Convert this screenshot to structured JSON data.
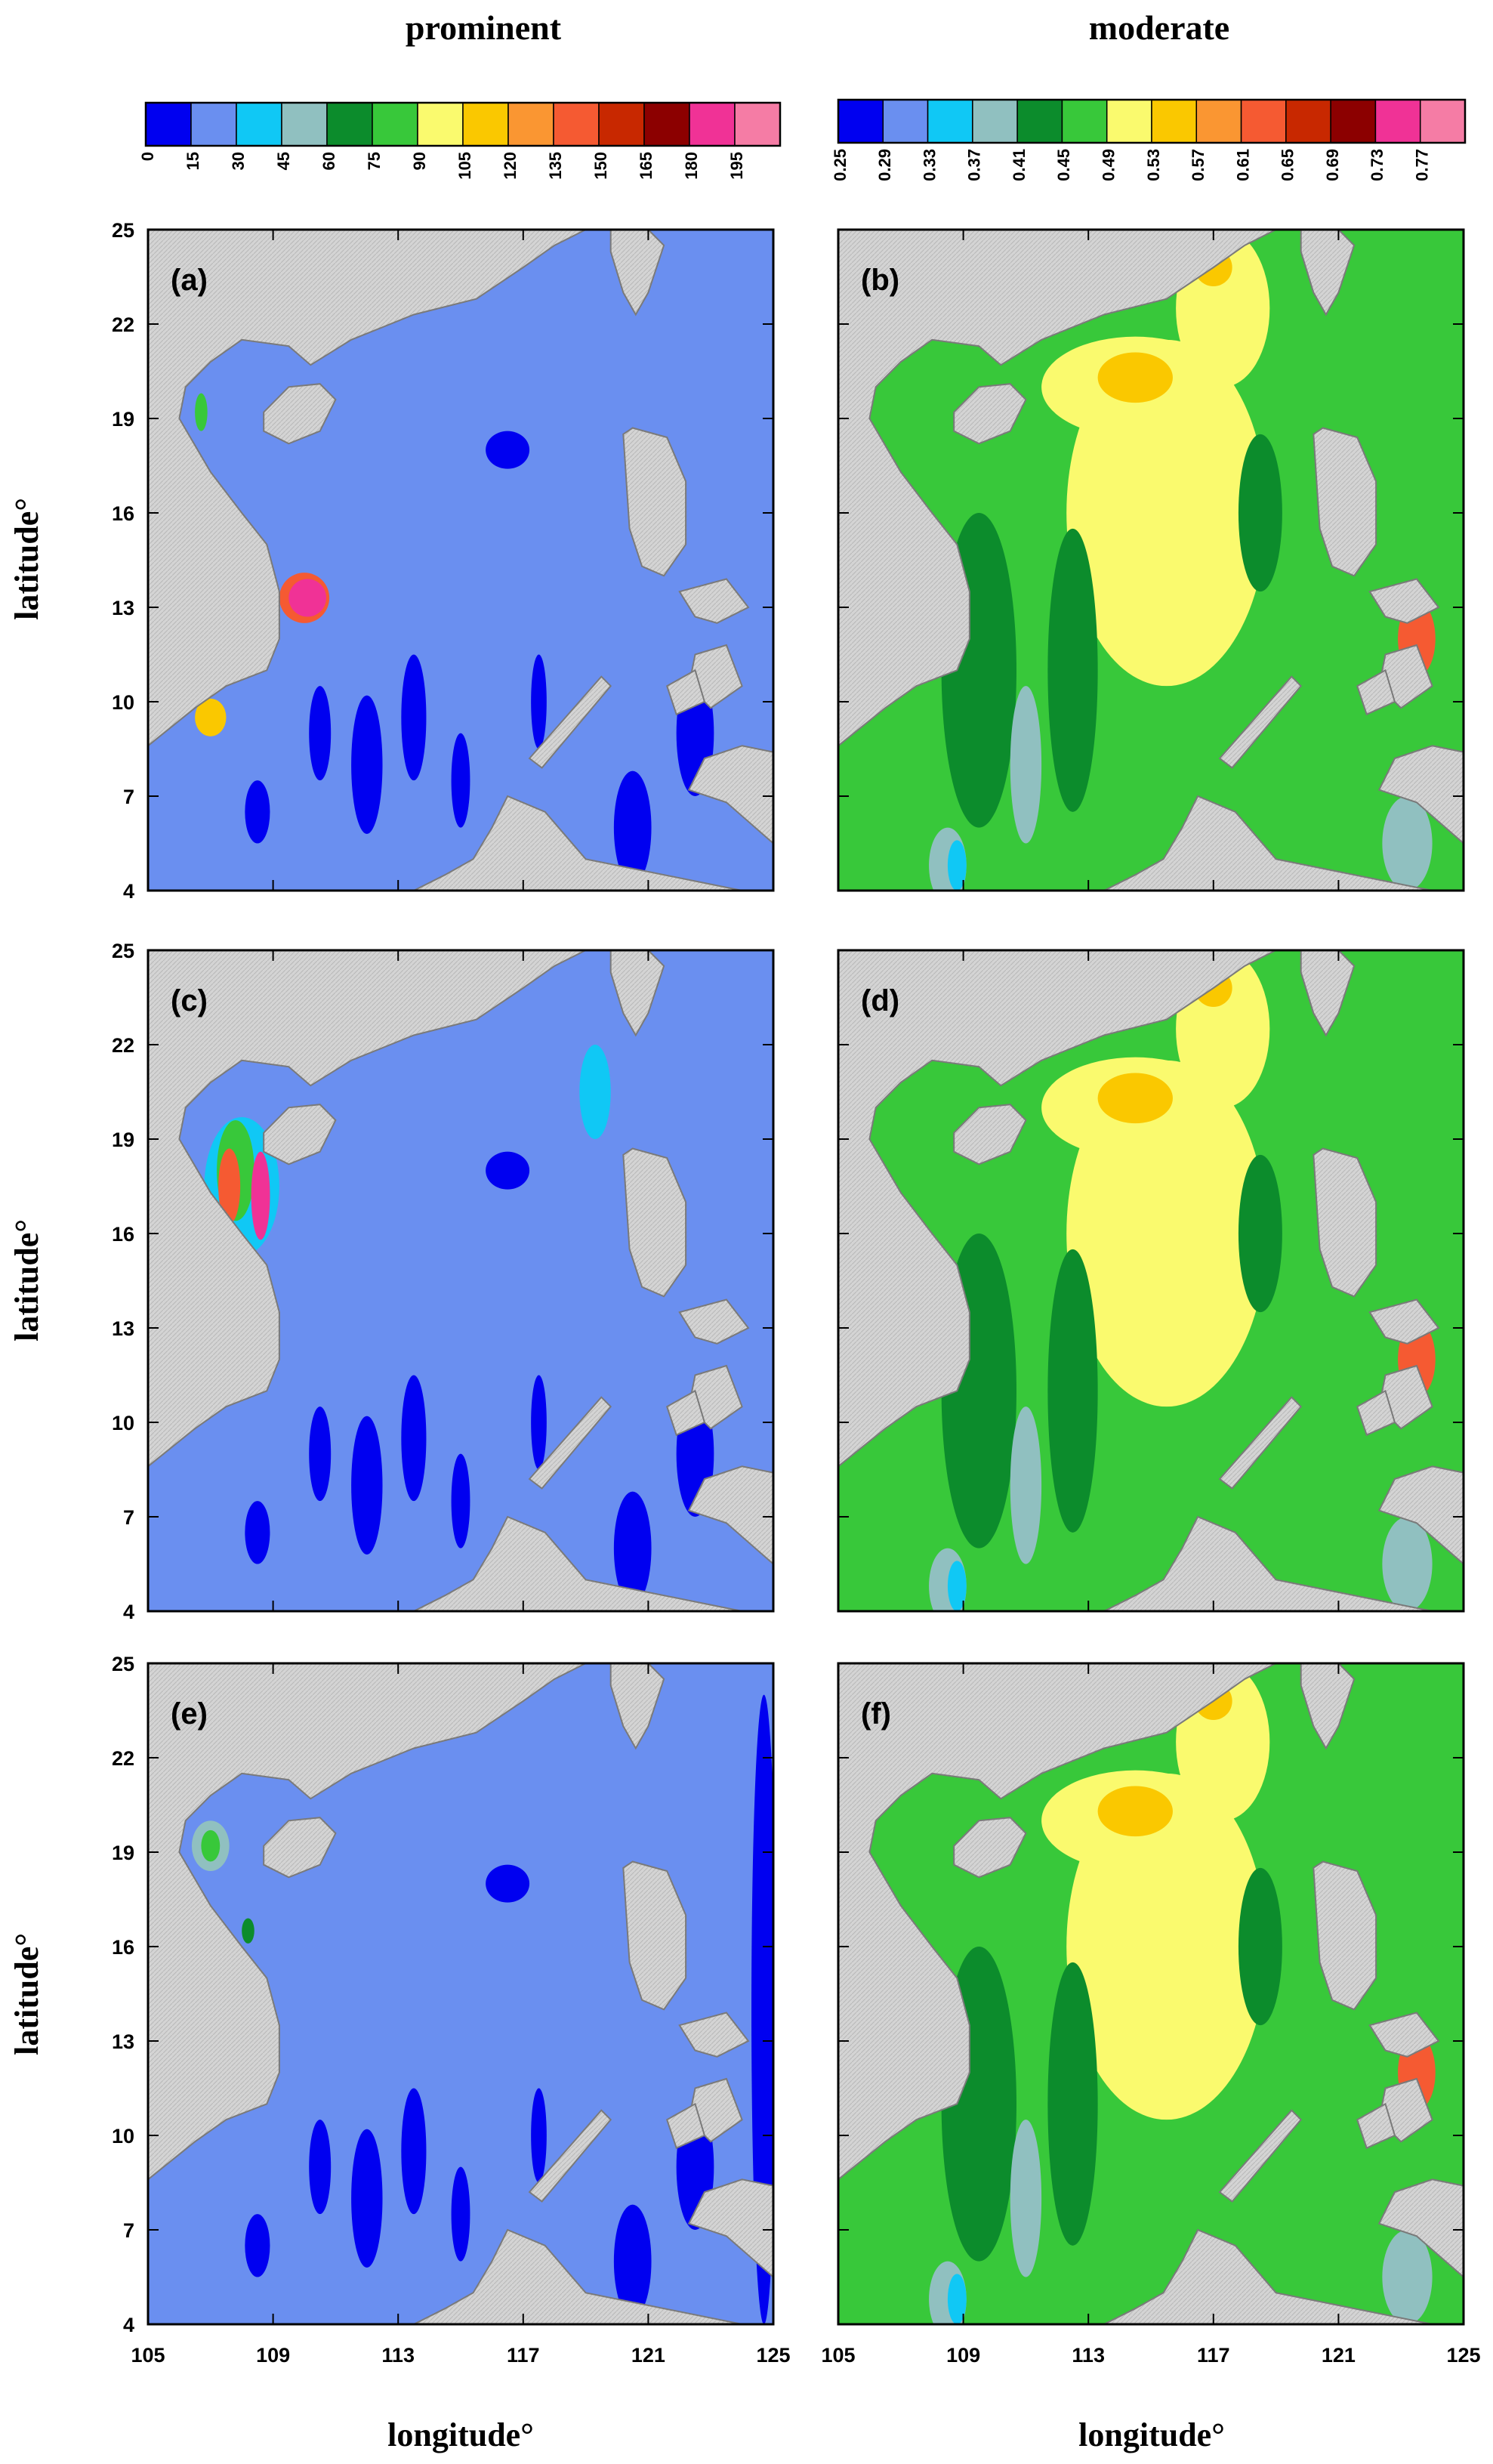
{
  "figure": {
    "column_titles": [
      "prominent",
      "moderate"
    ],
    "xlabel": "longitude°",
    "ylabel": "latitude°"
  },
  "colorbars": [
    {
      "name": "prominent",
      "ticks": [
        "0",
        "15",
        "30",
        "45",
        "60",
        "75",
        "90",
        "105",
        "120",
        "135",
        "150",
        "165",
        "180",
        "195"
      ],
      "colors": [
        "#0000f0",
        "#6a8ff0",
        "#10c8f5",
        "#90c0c0",
        "#0c8c2c",
        "#38c83a",
        "#fafa6e",
        "#fac800",
        "#fa9632",
        "#f55a32",
        "#c82800",
        "#8c0000",
        "#f03296",
        "#f57ca5"
      ]
    },
    {
      "name": "moderate",
      "ticks": [
        "0.25",
        "0.29",
        "0.33",
        "0.37",
        "0.41",
        "0.45",
        "0.49",
        "0.53",
        "0.57",
        "0.61",
        "0.65",
        "0.69",
        "0.73",
        "0.77"
      ],
      "colors": [
        "#0000f0",
        "#6a8ff0",
        "#10c8f5",
        "#90c0c0",
        "#0c8c2c",
        "#38c83a",
        "#fafa6e",
        "#fac800",
        "#fa9632",
        "#f55a32",
        "#c82800",
        "#8c0000",
        "#f03296",
        "#f57ca5"
      ]
    }
  ],
  "axes": {
    "x_ticks": [
      "105",
      "109",
      "113",
      "117",
      "121",
      "125"
    ],
    "y_ticks": [
      "25",
      "22",
      "19",
      "16",
      "13",
      "10",
      "7",
      "4"
    ],
    "xlim": [
      105,
      125
    ],
    "ylim": [
      4,
      25
    ]
  },
  "panels": [
    {
      "label": "(a)",
      "column": "prominent"
    },
    {
      "label": "(b)",
      "column": "moderate"
    },
    {
      "label": "(c)",
      "column": "prominent"
    },
    {
      "label": "(d)",
      "column": "moderate"
    },
    {
      "label": "(e)",
      "column": "prominent"
    },
    {
      "label": "(f)",
      "column": "moderate"
    }
  ],
  "colors": {
    "land": "#d4d4d4",
    "prominent_background": "#6a8ff0",
    "moderate_background": "#38c83a"
  }
}
